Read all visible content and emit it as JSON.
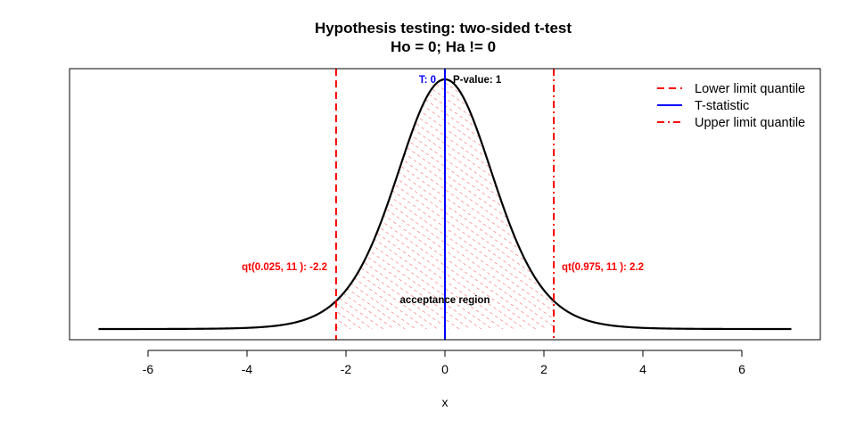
{
  "chart_data": {
    "type": "line",
    "title": "Hypothesis testing: two-sided t-test",
    "subtitle": "Ho = 0;  Ha != 0",
    "xlabel": "x",
    "ylabel": "",
    "xlim": [
      -7,
      7
    ],
    "ylim": [
      0,
      0.4
    ],
    "x_ticks": [
      "-6",
      "-4",
      "-2",
      "0",
      "2",
      "4",
      "6"
    ],
    "grid": false,
    "legend_position": "top-right",
    "df": 11,
    "lower_quantile": -2.2,
    "upper_quantile": 2.2,
    "t_statistic": 0,
    "series": [
      {
        "x": [
          -7,
          -6.5,
          -6,
          -5.5,
          -5,
          -4.5,
          -4,
          -3.5,
          -3,
          -2.5,
          -2.2,
          -2,
          -1.5,
          -1,
          -0.5,
          0,
          0.5,
          1,
          1.5,
          2,
          2.2,
          2.5,
          3,
          3.5,
          4,
          4.5,
          5,
          5.5,
          6,
          6.5,
          7
        ],
        "y": [
          0.0001,
          0.0001,
          0.0002,
          0.0003,
          0.0006,
          0.0012,
          0.0024,
          0.005,
          0.0105,
          0.0227,
          0.0379,
          0.0533,
          0.1245,
          0.2331,
          0.3431,
          0.3907,
          0.3431,
          0.2331,
          0.1245,
          0.0533,
          0.0379,
          0.0227,
          0.0105,
          0.005,
          0.0024,
          0.0012,
          0.0006,
          0.0003,
          0.0002,
          0.0001,
          0.0001
        ]
      }
    ],
    "legend": [
      {
        "label": "Lower limit quantile",
        "color": "#ff0000",
        "style": "dashed"
      },
      {
        "label": "T-statistic",
        "color": "#0000ff",
        "style": "solid"
      },
      {
        "label": "Upper limit quantile",
        "color": "#ff0000",
        "style": "dotdash"
      }
    ],
    "annotations": {
      "t_label": "T:  0",
      "p_value": "P-value: 1",
      "lower_label": "qt(0.025, 11 ):  -2.2",
      "upper_label": "qt(0.975, 11 ):  2.2",
      "region_label": "acceptance region"
    },
    "colors": {
      "curve": "#000000",
      "quantile": "#ff0000",
      "statistic": "#0000ff",
      "hatch": "#ff0000"
    }
  }
}
